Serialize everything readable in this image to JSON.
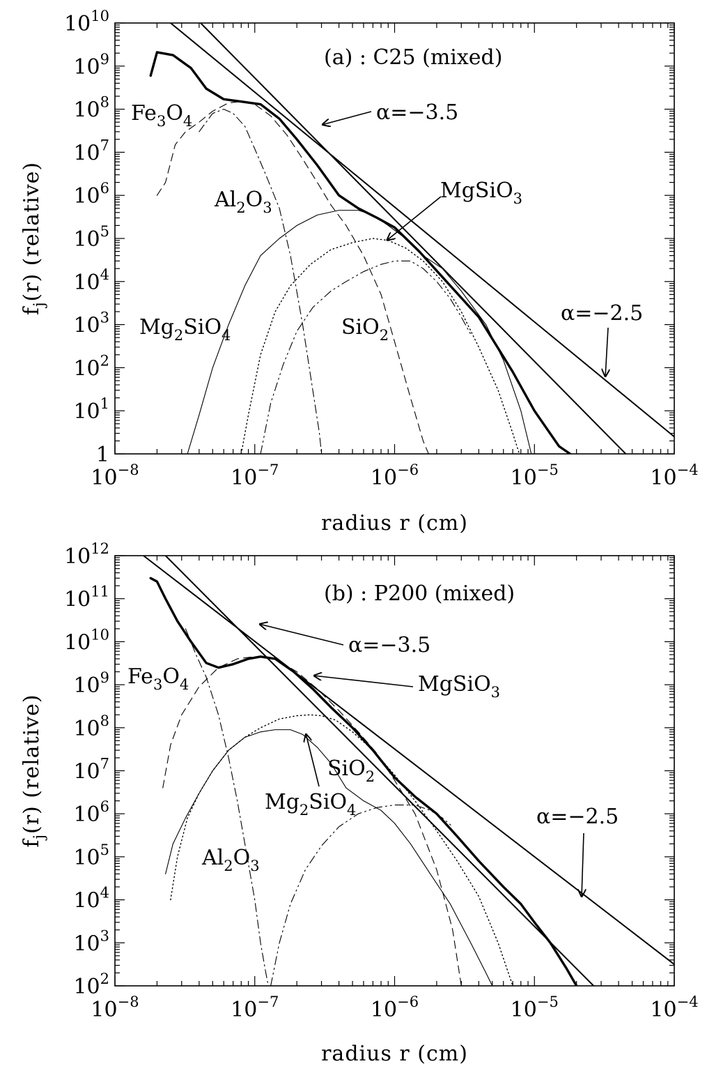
{
  "chart_data": [
    {
      "type": "line",
      "title": "(a) : C25 (mixed)",
      "xlabel": "radius r (cm)",
      "ylabel": "f_j(r) (relative)",
      "x_scale": "log",
      "y_scale": "log",
      "xlim": [
        1e-08,
        0.0001
      ],
      "ylim": [
        1,
        10000000000.0
      ],
      "x_tick_labels": [
        {
          "base": "10",
          "exp": "−8",
          "value": 1e-08
        },
        {
          "base": "10",
          "exp": "−7",
          "value": 1e-07
        },
        {
          "base": "10",
          "exp": "−6",
          "value": 1e-06
        },
        {
          "base": "10",
          "exp": "−5",
          "value": 1e-05
        },
        {
          "base": "10",
          "exp": "−4",
          "value": 0.0001
        }
      ],
      "y_tick_labels": [
        {
          "base": "1",
          "exp": "",
          "value": 1
        },
        {
          "base": "10",
          "exp": "1",
          "value": 10
        },
        {
          "base": "10",
          "exp": "2",
          "value": 100
        },
        {
          "base": "10",
          "exp": "3",
          "value": 1000
        },
        {
          "base": "10",
          "exp": "4",
          "value": 10000.0
        },
        {
          "base": "10",
          "exp": "5",
          "value": 100000.0
        },
        {
          "base": "10",
          "exp": "6",
          "value": 1000000.0
        },
        {
          "base": "10",
          "exp": "7",
          "value": 10000000.0
        },
        {
          "base": "10",
          "exp": "8",
          "value": 100000000.0
        },
        {
          "base": "10",
          "exp": "9",
          "value": 1000000000.0
        },
        {
          "base": "10",
          "exp": "10",
          "value": 10000000000.0
        }
      ],
      "series": [
        {
          "name": "",
          "style": "thick",
          "x": [
            1.8e-08,
            2e-08,
            2.6e-08,
            3.5e-08,
            4.5e-08,
            6e-08,
            8e-08,
            1.1e-07,
            1.5e-07,
            2e-07,
            2.8e-07,
            4e-07,
            5.5e-07,
            7.5e-07,
            1e-06,
            1.5e-06,
            2.5e-06,
            4e-06,
            7e-06,
            1e-05,
            1.5e-05,
            1.8e-05
          ],
          "y": [
            600000000.0,
            2100000000.0,
            1800000000.0,
            900000000.0,
            300000000.0,
            170000000.0,
            150000000.0,
            130000000.0,
            60000000.0,
            20000000.0,
            5000000.0,
            1000000.0,
            500000.0,
            300000.0,
            180000.0,
            50000.0,
            8000.0,
            1500.0,
            80,
            10,
            1.5,
            1
          ]
        },
        {
          "name": "Fe3O4",
          "style": "dashed",
          "x": [
            2e-08,
            2.3e-08,
            2.7e-08,
            3.2e-08,
            4e-08,
            5e-08,
            6.5e-08,
            8e-08,
            1e-07,
            1.3e-07,
            1.7e-07,
            2.2e-07,
            2.8e-07,
            3.5e-07,
            4.5e-07,
            6e-07,
            8e-07,
            1e-06,
            1.3e-06,
            1.6e-06,
            1.75e-06
          ],
          "y": [
            1000000.0,
            2000000.0,
            15000000.0,
            30000000.0,
            50000000.0,
            90000000.0,
            140000000.0,
            150000000.0,
            130000000.0,
            70000000.0,
            25000000.0,
            7000000.0,
            2000000.0,
            600000.0,
            200000.0,
            40000.0,
            5000.0,
            400,
            20,
            2,
            1
          ]
        },
        {
          "name": "Al2O3",
          "style": "dashdot",
          "x": [
            4e-08,
            5e-08,
            6e-08,
            7e-08,
            8.5e-08,
            1e-07,
            1.2e-07,
            1.5e-07,
            1.8e-07,
            2.2e-07,
            2.6e-07,
            2.9e-07,
            3e-07
          ],
          "y": [
            30000000.0,
            80000000.0,
            100000000.0,
            80000000.0,
            40000000.0,
            12000000.0,
            3000000.0,
            500000.0,
            40000.0,
            1000.0,
            30,
            3,
            1
          ]
        },
        {
          "name": "Mg2SiO4",
          "style": "thin",
          "x": [
            3.3e-08,
            4e-08,
            5e-08,
            6.5e-08,
            8.5e-08,
            1.1e-07,
            1.5e-07,
            2e-07,
            2.8e-07,
            4e-07,
            5.5e-07,
            7e-07,
            9e-07,
            1.2e-06,
            1.6e-06,
            2.2e-06,
            3e-06,
            4.5e-06,
            6e-06,
            8e-06,
            9.5e-06
          ],
          "y": [
            1,
            8,
            100,
            1000.0,
            8000.0,
            40000.0,
            100000.0,
            200000.0,
            350000.0,
            450000.0,
            450000.0,
            350000.0,
            200000.0,
            100000.0,
            40000.0,
            20000.0,
            6000.0,
            1000.0,
            150,
            10,
            1
          ]
        },
        {
          "name": "MgSiO3",
          "style": "dotted",
          "x": [
            8e-08,
            9e-08,
            1.1e-07,
            1.4e-07,
            1.8e-07,
            2.5e-07,
            3.5e-07,
            5e-07,
            7e-07,
            9e-07,
            1.2e-06,
            1.6e-06,
            2.2e-06,
            3e-06,
            4e-06,
            5.5e-06,
            7e-06,
            7.8e-06
          ],
          "y": [
            1,
            8,
            200,
            2000.0,
            8000.0,
            25000.0,
            55000.0,
            80000.0,
            100000.0,
            90000.0,
            60000.0,
            30000.0,
            10000.0,
            2000.0,
            300,
            30,
            3,
            1
          ]
        },
        {
          "name": "SiO2",
          "style": "dashdotdot",
          "x": [
            1.1e-07,
            1.3e-07,
            1.6e-07,
            2e-07,
            2.6e-07,
            3.5e-07,
            4.5e-07,
            6e-07,
            8e-07,
            1e-06,
            1.3e-06,
            1.6e-06,
            2e-06,
            2.5e-06,
            3e-06,
            3.5e-06
          ],
          "y": [
            1,
            15,
            120,
            700,
            2500.0,
            6000.0,
            10000.0,
            17000.0,
            25000.0,
            30000.0,
            30000.0,
            20000.0,
            10000.0,
            4000.0,
            1500.0,
            600
          ]
        },
        {
          "name": "α=−3.5",
          "style": "medium",
          "x": [
            4.1e-08,
            4.5e-05
          ],
          "y": [
            10000000000.0,
            1
          ]
        },
        {
          "name": "α=−2.5",
          "style": "medium",
          "x": [
            2.5e-08,
            0.0001
          ],
          "y": [
            10000000000.0,
            2.5
          ]
        }
      ],
      "annotations": {
        "fe3o4": {
          "parts": [
            [
              "Fe",
              false
            ],
            [
              "3",
              true
            ],
            [
              "O",
              false
            ],
            [
              "4",
              true
            ]
          ]
        },
        "al2o3": {
          "parts": [
            [
              "Al",
              false
            ],
            [
              "2",
              true
            ],
            [
              "O",
              false
            ],
            [
              "3",
              true
            ]
          ]
        },
        "mg2sio4": {
          "parts": [
            [
              "Mg",
              false
            ],
            [
              "2",
              true
            ],
            [
              "SiO",
              false
            ],
            [
              "4",
              true
            ]
          ]
        },
        "sio2": {
          "parts": [
            [
              "SiO",
              false
            ],
            [
              "2",
              true
            ]
          ]
        },
        "mgsio3": {
          "parts": [
            [
              "MgSiO",
              false
            ],
            [
              "3",
              true
            ]
          ]
        },
        "alpha35": "α=−3.5",
        "alpha25": "α=−2.5"
      },
      "grid": false,
      "legend": "none"
    },
    {
      "type": "line",
      "title": "(b) : P200 (mixed)",
      "xlabel": "radius r (cm)",
      "ylabel": "f_j(r) (relative)",
      "x_scale": "log",
      "y_scale": "log",
      "xlim": [
        1e-08,
        0.0001
      ],
      "ylim": [
        100,
        1000000000000.0
      ],
      "x_tick_labels": [
        {
          "base": "10",
          "exp": "−8",
          "value": 1e-08
        },
        {
          "base": "10",
          "exp": "−7",
          "value": 1e-07
        },
        {
          "base": "10",
          "exp": "−6",
          "value": 1e-06
        },
        {
          "base": "10",
          "exp": "−5",
          "value": 1e-05
        },
        {
          "base": "10",
          "exp": "−4",
          "value": 0.0001
        }
      ],
      "y_tick_labels": [
        {
          "base": "10",
          "exp": "2",
          "value": 100
        },
        {
          "base": "10",
          "exp": "3",
          "value": 1000
        },
        {
          "base": "10",
          "exp": "4",
          "value": 10000.0
        },
        {
          "base": "10",
          "exp": "5",
          "value": 100000.0
        },
        {
          "base": "10",
          "exp": "6",
          "value": 1000000.0
        },
        {
          "base": "10",
          "exp": "7",
          "value": 10000000.0
        },
        {
          "base": "10",
          "exp": "8",
          "value": 100000000.0
        },
        {
          "base": "10",
          "exp": "9",
          "value": 1000000000.0
        },
        {
          "base": "10",
          "exp": "10",
          "value": 10000000000.0
        },
        {
          "base": "10",
          "exp": "11",
          "value": 100000000000.0
        },
        {
          "base": "10",
          "exp": "12",
          "value": 1000000000000.0
        }
      ],
      "series": [
        {
          "name": "",
          "style": "thick",
          "x": [
            1.8e-08,
            2e-08,
            2.3e-08,
            2.8e-08,
            3.5e-08,
            4.5e-08,
            5.5e-08,
            7e-08,
            9e-08,
            1.1e-07,
            1.4e-07,
            1.9e-07,
            2.6e-07,
            3.5e-07,
            5e-07,
            7e-07,
            1e-06,
            1.4e-06,
            2e-06,
            2.8e-06,
            4e-06,
            6e-06,
            8e-06,
            1e-05,
            1.3e-05,
            1.7e-05,
            2e-05
          ],
          "y": [
            300000000000.0,
            250000000000.0,
            100000000000.0,
            30000000000.0,
            10000000000.0,
            3200000000.0,
            2500000000.0,
            3000000000.0,
            4000000000.0,
            4500000000.0,
            4000000000.0,
            2000000000.0,
            800000000.0,
            300000000.0,
            100000000.0,
            30000000.0,
            7000000.0,
            2500000.0,
            1000000.0,
            300000.0,
            80000.0,
            20000.0,
            8000.0,
            3000.0,
            1000.0,
            250,
            100
          ]
        },
        {
          "name": "Fe3O4",
          "style": "dashed",
          "x": [
            2.2e-08,
            2.5e-08,
            3e-08,
            4e-08,
            5.5e-08,
            7.5e-08,
            1e-07,
            1.4e-07,
            2e-07,
            2.8e-07,
            4e-07,
            5.5e-07,
            7.5e-07,
            1e-06,
            1.4e-06,
            2e-06,
            2.6e-06,
            3e-06
          ],
          "y": [
            4000000.0,
            40000000.0,
            200000000.0,
            900000000.0,
            2500000000.0,
            4000000000.0,
            4500000000.0,
            4000000000.0,
            2000000000.0,
            800000000.0,
            250000000.0,
            80000000.0,
            25000000.0,
            6000000.0,
            1000000.0,
            50000.0,
            2000.0,
            100
          ]
        },
        {
          "name": "Al2O3",
          "style": "dashdot",
          "x": [
            3.2e-08,
            3.8e-08,
            4.5e-08,
            5.5e-08,
            6.5e-08,
            7.5e-08,
            8.5e-08,
            1e-07,
            1.1e-07,
            1.2e-07,
            1.25e-07
          ],
          "y": [
            20000000000.0,
            5000000000.0,
            1500000000.0,
            200000000.0,
            20000000.0,
            2000000.0,
            200000.0,
            10000.0,
            1000.0,
            200,
            100
          ]
        },
        {
          "name": "Mg2SiO4",
          "style": "thin",
          "x": [
            2.3e-08,
            2.6e-08,
            3.2e-08,
            4e-08,
            5e-08,
            6.5e-08,
            8.5e-08,
            1.1e-07,
            1.4e-07,
            1.8e-07,
            2.2e-07,
            2.8e-07,
            3.5e-07,
            4.5e-07,
            6e-07,
            8e-07,
            1e-06,
            1.3e-06,
            1.8e-06,
            2.5e-06,
            3.5e-06,
            4.5e-06,
            5e-06
          ],
          "y": [
            40000.0,
            200000.0,
            800000.0,
            3000000.0,
            10000000.0,
            30000000.0,
            60000000.0,
            80000000.0,
            90000000.0,
            90000000.0,
            70000000.0,
            35000000.0,
            15000000.0,
            4000000.0,
            2000000.0,
            1200000.0,
            600000.0,
            200000.0,
            40000.0,
            8000.0,
            1000.0,
            200,
            100
          ]
        },
        {
          "name": "MgSiO3",
          "style": "dotted",
          "x": [
            2.5e-08,
            2.8e-08,
            3.3e-08,
            4e-08,
            5e-08,
            6.5e-08,
            8.5e-08,
            1.1e-07,
            1.5e-07,
            2e-07,
            2.5e-07,
            3e-07,
            3.8e-07,
            5e-07,
            7e-07,
            1e-06,
            1.4e-06,
            2e-06,
            2.8e-06,
            4e-06,
            5.5e-06,
            7e-06
          ],
          "y": [
            10000.0,
            100000.0,
            800000.0,
            3000000.0,
            10000000.0,
            30000000.0,
            60000000.0,
            100000000.0,
            160000000.0,
            190000000.0,
            200000000.0,
            190000000.0,
            150000000.0,
            80000000.0,
            30000000.0,
            8000000.0,
            2000000.0,
            400000.0,
            80000.0,
            12000.0,
            1000.0,
            100
          ]
        },
        {
          "name": "SiO2",
          "style": "dashdotdot",
          "x": [
            1.3e-07,
            1.5e-07,
            1.8e-07,
            2.3e-07,
            3e-07,
            4e-07,
            5.5e-07,
            7.5e-07,
            1e-06,
            1.4e-06,
            1.8e-06,
            2.2e-06,
            2.6e-06
          ],
          "y": [
            100,
            1000.0,
            8000.0,
            50000.0,
            180000.0,
            500000.0,
            1000000.0,
            1400000.0,
            1600000.0,
            1600000.0,
            1200000.0,
            800000.0,
            500000.0
          ]
        },
        {
          "name": "α=−3.5",
          "style": "medium",
          "x": [
            2.3e-08,
            2.65e-05
          ],
          "y": [
            1000000000000.0,
            100
          ]
        },
        {
          "name": "α=−2.5",
          "style": "medium",
          "x": [
            1.6e-08,
            0.0001
          ],
          "y": [
            1000000000000.0,
            316
          ]
        }
      ],
      "annotations": {
        "fe3o4": {
          "parts": [
            [
              "Fe",
              false
            ],
            [
              "3",
              true
            ],
            [
              "O",
              false
            ],
            [
              "4",
              true
            ]
          ]
        },
        "al2o3": {
          "parts": [
            [
              "Al",
              false
            ],
            [
              "2",
              true
            ],
            [
              "O",
              false
            ],
            [
              "3",
              true
            ]
          ]
        },
        "mg2sio4": {
          "parts": [
            [
              "Mg",
              false
            ],
            [
              "2",
              true
            ],
            [
              "SiO",
              false
            ],
            [
              "4",
              true
            ]
          ]
        },
        "sio2": {
          "parts": [
            [
              "SiO",
              false
            ],
            [
              "2",
              true
            ]
          ]
        },
        "mgsio3": {
          "parts": [
            [
              "MgSiO",
              false
            ],
            [
              "3",
              true
            ]
          ]
        },
        "alpha35": "α=−3.5",
        "alpha25": "α=−2.5"
      },
      "grid": false,
      "legend": "none"
    }
  ]
}
